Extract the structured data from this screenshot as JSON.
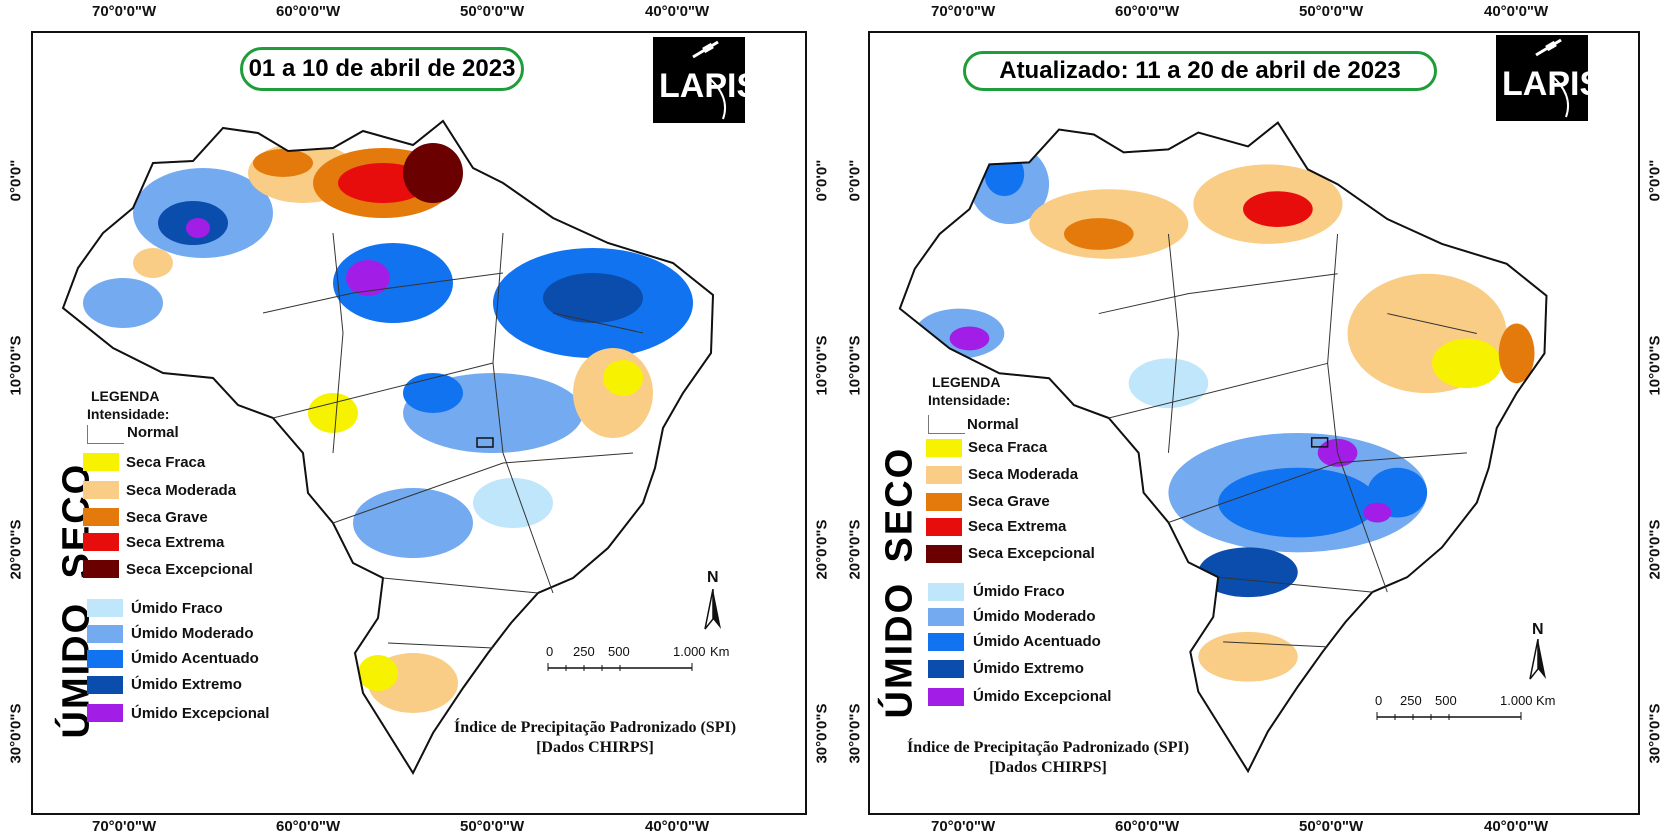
{
  "axes": {
    "longitude_ticks": [
      "70°0'0\"W",
      "60°0'0\"W",
      "50°0'0\"W",
      "40°0'0\"W"
    ],
    "latitude_ticks": [
      "0°0'0\"",
      "10°0'0\"S",
      "20°0'0\"S",
      "30°0'0\"S"
    ]
  },
  "panels": [
    {
      "title": "01 a 10 de abril de 2023",
      "logo": "LAPIS",
      "legend": {
        "heading_line1": "LEGENDA",
        "heading_line2": "Intensidade:",
        "normal": "Normal",
        "dry_group": "SECO",
        "wet_group": "ÚMIDO",
        "dry": [
          "Seca Fraca",
          "Seca Moderada",
          "Seca Grave",
          "Seca Extrema",
          "Seca Excepcional"
        ],
        "wet": [
          "Úmido Fraco",
          "Úmido Moderado",
          "Úmido Acentuado",
          "Úmido Extremo",
          "Úmido Excepcional"
        ]
      },
      "scale": [
        "0",
        "250",
        "500",
        "1.000",
        "Km"
      ],
      "north": "N",
      "footer_line1": "Índice de Precipitação Padronizado (SPI)",
      "footer_line2": "[Dados CHIRPS]"
    },
    {
      "title": "Atualizado: 11 a 20 de abril de 2023",
      "logo": "LAPIS",
      "legend": {
        "heading_line1": "LEGENDA",
        "heading_line2": "Intensidade:",
        "normal": "Normal",
        "dry_group": "SECO",
        "wet_group": "ÚMIDO",
        "dry": [
          "Seca Fraca",
          "Seca Moderada",
          "Seca Grave",
          "Seca Extrema",
          "Seca Excepcional"
        ],
        "wet": [
          "Úmido Fraco",
          "Úmido Moderado",
          "Úmido Acentuado",
          "Úmido Extremo",
          "Úmido Excepcional"
        ]
      },
      "scale": [
        "0",
        "250",
        "500",
        "1.000",
        "Km"
      ],
      "north": "N",
      "footer_line1": "Índice de Precipitação Padronizado (SPI)",
      "footer_line2": "[Dados CHIRPS]"
    }
  ],
  "colors": {
    "title_border": "#1f9d3a",
    "dry": [
      "#f7f300",
      "#f9cd85",
      "#e57a0c",
      "#e80d0d",
      "#6b0000"
    ],
    "wet": [
      "#bfe6fb",
      "#74aaf0",
      "#1273f0",
      "#0a4dac",
      "#a21ee6"
    ],
    "normal": "#ffffff"
  }
}
